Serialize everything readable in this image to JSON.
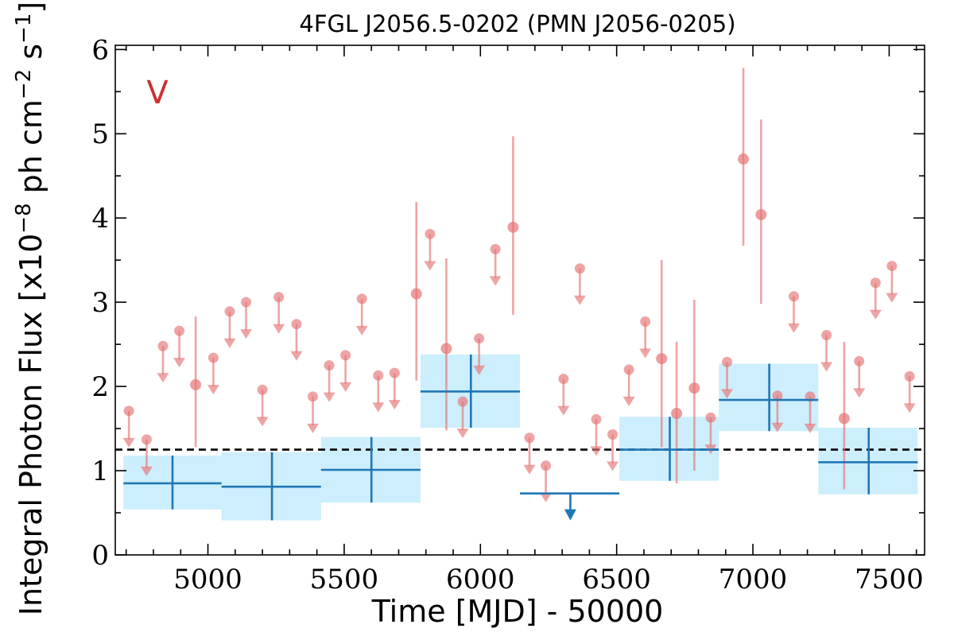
{
  "title": "4FGL J2056.5-0202 (PMN J2056-0205)",
  "band_label": "V",
  "chart_data": {
    "type": "scatter",
    "title": "4FGL J2056.5-0202 (PMN J2056-0205)",
    "xlabel": "Time [MJD] - 50000",
    "ylabel": "Integral Photon Flux [x10^-8 ph cm^-2 s^-1]",
    "ylabel_parts": {
      "main": "Integral Photon Flux [x10",
      "exp1": "−8",
      "mid": " ph cm",
      "exp2": "−2",
      "mid2": " s",
      "exp3": "−1",
      "close": "]"
    },
    "xlim": [
      4660,
      7630
    ],
    "ylim": [
      0,
      6.05
    ],
    "xticks": [
      5000,
      5500,
      6000,
      6500,
      7000,
      7500
    ],
    "xtick_labels": [
      "5000",
      "5500",
      "6000",
      "6500",
      "7000",
      "7500"
    ],
    "yticks": [
      0,
      1,
      2,
      3,
      4,
      5,
      6
    ],
    "ytick_labels": [
      "0",
      "1",
      "2",
      "3",
      "4",
      "5",
      "6"
    ],
    "grid": false,
    "mean_flux": 1.25,
    "colors": {
      "short_bin": "#e57373",
      "long_bin": "#1f77b4",
      "long_bin_fill": "#cdeefc",
      "band_label": "#cc3030",
      "mean_line": "#000000"
    },
    "short_bins_detected": [
      {
        "x": 4955,
        "y": 2.02,
        "ylo": 1.28,
        "yhi": 2.83
      },
      {
        "x": 5765,
        "y": 3.1,
        "ylo": 2.07,
        "yhi": 4.19
      },
      {
        "x": 5875,
        "y": 2.45,
        "ylo": 1.48,
        "yhi": 3.52
      },
      {
        "x": 6120,
        "y": 3.89,
        "ylo": 2.85,
        "yhi": 4.97
      },
      {
        "x": 6665,
        "y": 2.33,
        "ylo": 1.28,
        "yhi": 3.5
      },
      {
        "x": 6720,
        "y": 1.68,
        "ylo": 0.85,
        "yhi": 2.53
      },
      {
        "x": 6785,
        "y": 1.98,
        "ylo": 1.0,
        "yhi": 3.03
      },
      {
        "x": 6965,
        "y": 4.7,
        "ylo": 3.67,
        "yhi": 5.78
      },
      {
        "x": 7030,
        "y": 4.04,
        "ylo": 2.98,
        "yhi": 5.17
      },
      {
        "x": 7335,
        "y": 1.62,
        "ylo": 0.78,
        "yhi": 2.53
      }
    ],
    "short_bins_upper_limits": [
      {
        "x": 4710,
        "y": 1.71
      },
      {
        "x": 4775,
        "y": 1.37
      },
      {
        "x": 4835,
        "y": 2.48
      },
      {
        "x": 4895,
        "y": 2.66
      },
      {
        "x": 5020,
        "y": 2.34
      },
      {
        "x": 5080,
        "y": 2.89
      },
      {
        "x": 5140,
        "y": 3.0
      },
      {
        "x": 5200,
        "y": 1.96
      },
      {
        "x": 5260,
        "y": 3.06
      },
      {
        "x": 5325,
        "y": 2.74
      },
      {
        "x": 5385,
        "y": 1.88
      },
      {
        "x": 5445,
        "y": 2.25
      },
      {
        "x": 5505,
        "y": 2.37
      },
      {
        "x": 5565,
        "y": 3.04
      },
      {
        "x": 5625,
        "y": 2.13
      },
      {
        "x": 5685,
        "y": 2.16
      },
      {
        "x": 5815,
        "y": 3.81
      },
      {
        "x": 5935,
        "y": 1.82
      },
      {
        "x": 5995,
        "y": 2.57
      },
      {
        "x": 6055,
        "y": 3.63
      },
      {
        "x": 6180,
        "y": 1.39
      },
      {
        "x": 6240,
        "y": 1.06
      },
      {
        "x": 6305,
        "y": 2.09
      },
      {
        "x": 6365,
        "y": 3.4
      },
      {
        "x": 6425,
        "y": 1.61
      },
      {
        "x": 6485,
        "y": 1.43
      },
      {
        "x": 6545,
        "y": 2.2
      },
      {
        "x": 6605,
        "y": 2.77
      },
      {
        "x": 6845,
        "y": 1.63
      },
      {
        "x": 6905,
        "y": 2.29
      },
      {
        "x": 7090,
        "y": 1.89
      },
      {
        "x": 7150,
        "y": 3.07
      },
      {
        "x": 7210,
        "y": 1.88
      },
      {
        "x": 7270,
        "y": 2.61
      },
      {
        "x": 7390,
        "y": 2.3
      },
      {
        "x": 7450,
        "y": 3.23
      },
      {
        "x": 7510,
        "y": 3.43
      },
      {
        "x": 7575,
        "y": 2.12
      }
    ],
    "long_bins_detected": [
      {
        "x": 4870,
        "xlo": 4690,
        "xhi": 5050,
        "y": 0.85,
        "ylo": 0.54,
        "yhi": 1.18
      },
      {
        "x": 5235,
        "xlo": 5050,
        "xhi": 5415,
        "y": 0.81,
        "ylo": 0.41,
        "yhi": 1.22
      },
      {
        "x": 5600,
        "xlo": 5415,
        "xhi": 5780,
        "y": 1.01,
        "ylo": 0.62,
        "yhi": 1.4
      },
      {
        "x": 5965,
        "xlo": 5780,
        "xhi": 6145,
        "y": 1.94,
        "ylo": 1.51,
        "yhi": 2.38
      },
      {
        "x": 6695,
        "xlo": 6510,
        "xhi": 6875,
        "y": 1.25,
        "ylo": 0.88,
        "yhi": 1.64
      },
      {
        "x": 7060,
        "xlo": 6875,
        "xhi": 7240,
        "y": 1.84,
        "ylo": 1.47,
        "yhi": 2.27
      },
      {
        "x": 7425,
        "xlo": 7240,
        "xhi": 7605,
        "y": 1.1,
        "ylo": 0.72,
        "yhi": 1.51
      }
    ],
    "long_bins_upper_limits": [
      {
        "x": 6330,
        "xlo": 6145,
        "xhi": 6510,
        "y": 0.73
      }
    ]
  }
}
